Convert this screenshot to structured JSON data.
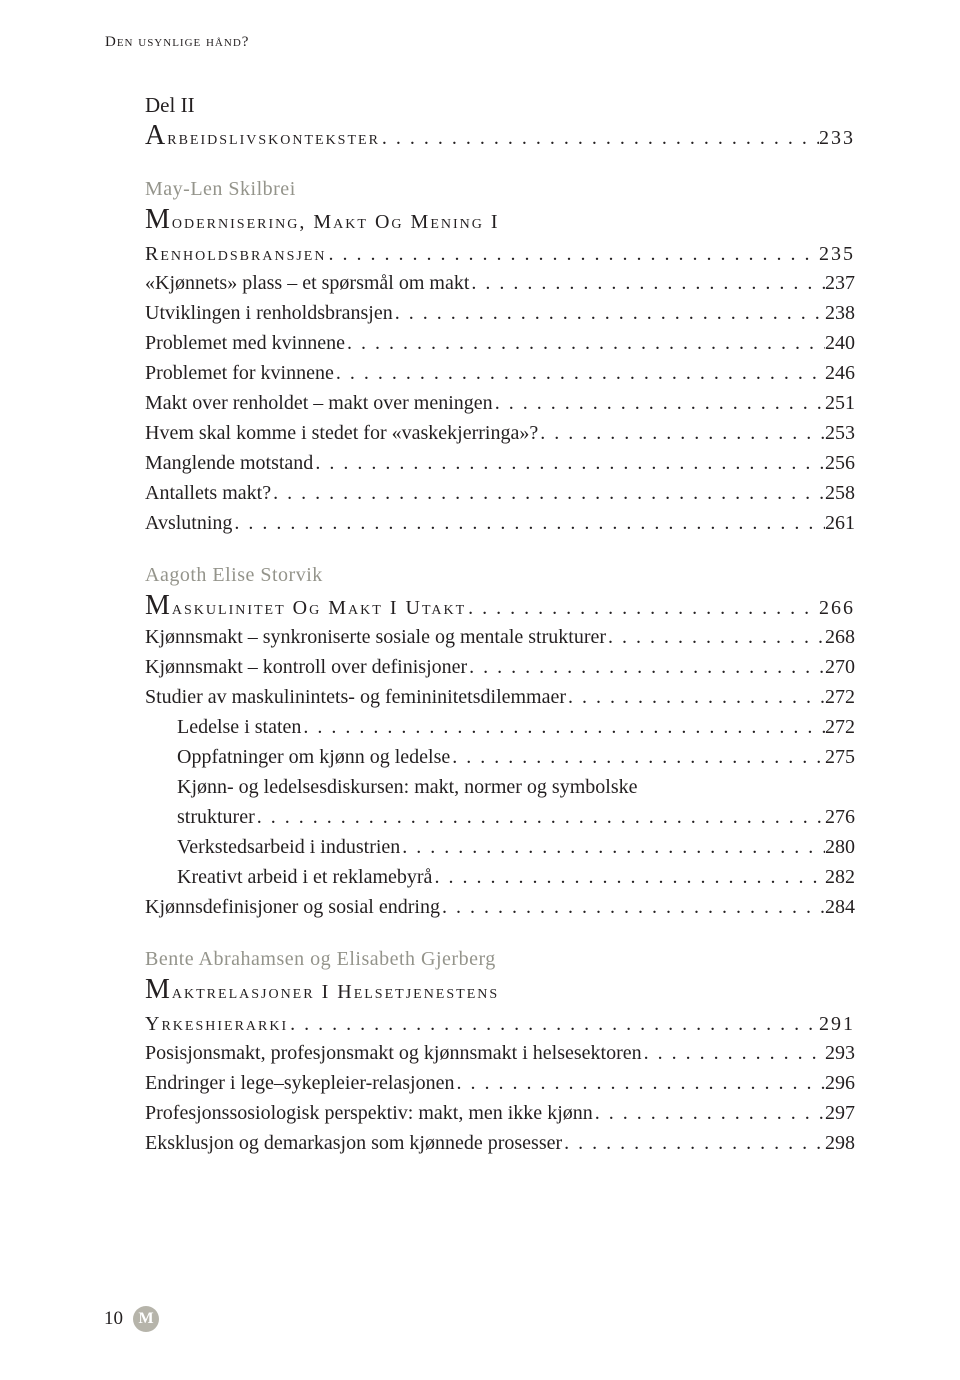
{
  "running_head": "Den usynlige hånd?",
  "part_label": "Del II",
  "blocks": [
    {
      "author": null,
      "title_line": {
        "text": "Arbeidslivskontekster",
        "page": "233"
      },
      "entries": []
    },
    {
      "author": "May-Len Skilbrei",
      "title_line": {
        "text": "Modernisering, makt og mening i",
        "page": null
      },
      "title_cont": {
        "text": "renholdsbransjen",
        "page": "235"
      },
      "entries": [
        {
          "text": "«Kjønnets» plass – et spørsmål om makt",
          "page": "237",
          "indent": 0
        },
        {
          "text": "Utviklingen i renholdsbransjen",
          "page": "238",
          "indent": 0
        },
        {
          "text": "Problemet med kvinnene",
          "page": "240",
          "indent": 0
        },
        {
          "text": "Problemet for kvinnene",
          "page": "246",
          "indent": 0
        },
        {
          "text": "Makt over renholdet – makt over meningen",
          "page": "251",
          "indent": 0
        },
        {
          "text": "Hvem skal komme i stedet for «vaskekjerringa»?",
          "page": "253",
          "indent": 0
        },
        {
          "text": "Manglende motstand",
          "page": "256",
          "indent": 0
        },
        {
          "text": "Antallets makt?",
          "page": "258",
          "indent": 0
        },
        {
          "text": "Avslutning",
          "page": "261",
          "indent": 0
        }
      ]
    },
    {
      "author": "Aagoth Elise Storvik",
      "title_line": {
        "text": "Maskulinitet og makt i utakt",
        "page": "266"
      },
      "entries": [
        {
          "text": "Kjønnsmakt – synkroniserte sosiale og mentale strukturer",
          "page": "268",
          "indent": 0
        },
        {
          "text": "Kjønnsmakt – kontroll over definisjoner",
          "page": "270",
          "indent": 0
        },
        {
          "text": "Studier av maskulinintets- og femininitetsdilemmaer",
          "page": "272",
          "indent": 0
        },
        {
          "text": "Ledelse i staten",
          "page": "272",
          "indent": 1
        },
        {
          "text": "Oppfatninger om kjønn og ledelse",
          "page": "275",
          "indent": 1
        },
        {
          "text": "Kjønn- og ledelsesdiskursen: makt, normer og symbolske",
          "page": null,
          "indent": 1
        },
        {
          "text": "strukturer",
          "page": "276",
          "indent": 1
        },
        {
          "text": "Verkstedsarbeid i industrien",
          "page": "280",
          "indent": 1
        },
        {
          "text": "Kreativt arbeid i et reklamebyrå",
          "page": "282",
          "indent": 1
        },
        {
          "text": "Kjønnsdefinisjoner og sosial endring",
          "page": "284",
          "indent": 0
        }
      ]
    },
    {
      "author": "Bente Abrahamsen og Elisabeth Gjerberg",
      "title_line": {
        "text": "Maktrelasjoner i helsetjenestens",
        "page": null
      },
      "title_cont": {
        "text": "yrkeshierarki",
        "page": "291"
      },
      "entries": [
        {
          "text": "Posisjonsmakt, profesjonsmakt og kjønnsmakt i helsesektoren",
          "page": "293",
          "indent": 0
        },
        {
          "text": "Endringer i lege–sykepleier-relasjonen",
          "page": "296",
          "indent": 0
        },
        {
          "text": "Profesjonssosiologisk perspektiv: makt, men ikke kjønn",
          "page": "297",
          "indent": 0
        },
        {
          "text": "Eksklusjon og demarkasjon som kjønnede prosesser",
          "page": "298",
          "indent": 0
        }
      ]
    }
  ],
  "footer_page": "10",
  "footer_icon_letter": "M",
  "leader_fill": ". . . . . . . . . . . . . . . . . . . . . . . . . . . . . . . . . . . . . . . . . . . . . . . . . . . . . . . . . . . . . . . . . . . . . . . . . . . . . . . . . . . . . . . . . . . . . . . . . . . . . . . . . . . . . . . . . ."
}
